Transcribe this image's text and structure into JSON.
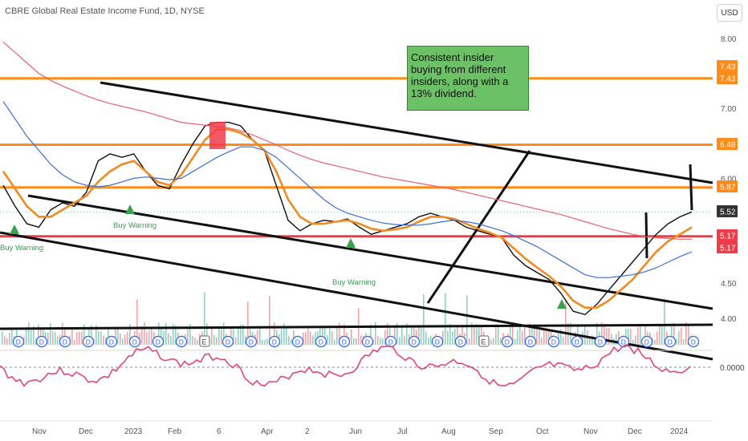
{
  "header": {
    "title": "CBRE Global Real Estate Income Fund, 1D, NYSE",
    "currency": "USD"
  },
  "note": {
    "text": "Consistent insider buying from different insiders, along with a 13% dividend."
  },
  "colors": {
    "orange": "#ff8c1a",
    "red": "#ee3d4a",
    "green": "#3aa14d",
    "black": "#111111",
    "ma_blue": "#3a6fd8",
    "ma_red": "#e8606d",
    "ma_orange": "#f08a24",
    "rsi": "#e0467d",
    "note_bg": "#6cc166"
  },
  "chart_data": {
    "type": "line",
    "xlabel": "",
    "ylabel": "",
    "x_ticks": [
      "Nov",
      "Dec",
      "2023",
      "Feb",
      "6",
      "Apr",
      "2",
      "Jun",
      "Jul",
      "Aug",
      "Sep",
      "Oct",
      "Nov",
      "Dec",
      "2024"
    ],
    "y_ticks": [
      "8.00",
      "7.00",
      "6.00",
      "4.50",
      "4.00"
    ],
    "ylim": [
      3.6,
      8.2
    ],
    "grid": false,
    "price_labels": [
      {
        "text": "7.43",
        "value": 7.43,
        "color": "#ff8c1a"
      },
      {
        "text": "6.48",
        "value": 6.48,
        "color": "#ff8c1a"
      },
      {
        "text": "5.87",
        "value": 5.87,
        "color": "#ff8c1a"
      },
      {
        "text": "5.52",
        "value": 5.52,
        "color": "#333333"
      },
      {
        "text": "5.17",
        "value": 5.17,
        "color": "#ee3d4a"
      }
    ],
    "horizontal_levels": [
      {
        "value": 7.43,
        "color": "#ff8c1a"
      },
      {
        "value": 6.48,
        "color": "#ff8c1a"
      },
      {
        "value": 5.87,
        "color": "#ff8c1a"
      },
      {
        "value": 5.17,
        "color": "#ee3d4a"
      }
    ],
    "annotations": [
      {
        "text": "Buy Warning"
      },
      {
        "text": "Buy Warning"
      },
      {
        "text": "Buy Warning"
      }
    ],
    "indicator_tick": "0.0000",
    "series": [
      {
        "values": [
          5.9,
          5.6,
          5.35,
          5.3,
          5.55,
          5.65,
          5.6,
          5.8,
          6.25,
          6.35,
          6.3,
          6.35,
          6.1,
          5.9,
          5.85,
          6.2,
          6.5,
          6.75,
          6.8,
          6.8,
          6.75,
          6.55,
          6.4,
          5.9,
          5.4,
          5.25,
          5.35,
          5.4,
          5.38,
          5.42,
          5.3,
          5.2,
          5.25,
          5.3,
          5.35,
          5.45,
          5.5,
          5.45,
          5.4,
          5.3,
          5.25,
          5.2,
          5.15,
          4.9,
          4.75,
          4.65,
          4.55,
          4.35,
          4.1,
          4.05,
          4.2,
          4.4,
          4.6,
          4.8,
          5.0,
          5.2,
          5.35,
          5.45,
          5.52
        ]
      },
      {
        "values": [
          6.1,
          5.85,
          5.6,
          5.45,
          5.45,
          5.55,
          5.65,
          5.75,
          5.95,
          6.1,
          6.2,
          6.25,
          6.1,
          5.95,
          5.9,
          6.05,
          6.3,
          6.55,
          6.7,
          6.7,
          6.65,
          6.55,
          6.4,
          6.1,
          5.7,
          5.45,
          5.35,
          5.35,
          5.38,
          5.4,
          5.35,
          5.28,
          5.25,
          5.27,
          5.3,
          5.38,
          5.45,
          5.45,
          5.42,
          5.35,
          5.28,
          5.22,
          5.15,
          5.0,
          4.85,
          4.72,
          4.6,
          4.45,
          4.25,
          4.15,
          4.15,
          4.25,
          4.4,
          4.55,
          4.75,
          4.95,
          5.1,
          5.2,
          5.3
        ]
      },
      {
        "values": [
          7.1,
          6.85,
          6.6,
          6.4,
          6.2,
          6.05,
          5.95,
          5.9,
          5.88,
          5.9,
          5.95,
          6.0,
          6.02,
          6.0,
          5.98,
          6.0,
          6.1,
          6.2,
          6.3,
          6.38,
          6.45,
          6.45,
          6.4,
          6.3,
          6.15,
          6.0,
          5.85,
          5.7,
          5.58,
          5.5,
          5.45,
          5.4,
          5.36,
          5.34,
          5.33,
          5.33,
          5.35,
          5.38,
          5.4,
          5.38,
          5.35,
          5.3,
          5.25,
          5.18,
          5.1,
          5.02,
          4.92,
          4.82,
          4.72,
          4.62,
          4.58,
          4.58,
          4.6,
          4.62,
          4.66,
          4.72,
          4.8,
          4.88,
          4.95
        ]
      },
      {
        "values": [
          7.95,
          7.8,
          7.65,
          7.5,
          7.4,
          7.32,
          7.25,
          7.18,
          7.12,
          7.07,
          7.03,
          6.99,
          6.95,
          6.9,
          6.85,
          6.8,
          6.78,
          6.76,
          6.74,
          6.72,
          6.68,
          6.62,
          6.55,
          6.48,
          6.4,
          6.33,
          6.27,
          6.22,
          6.18,
          6.14,
          6.1,
          6.06,
          6.02,
          5.99,
          5.96,
          5.93,
          5.9,
          5.87,
          5.84,
          5.8,
          5.76,
          5.72,
          5.68,
          5.64,
          5.6,
          5.56,
          5.52,
          5.48,
          5.43,
          5.38,
          5.33,
          5.28,
          5.24,
          5.2,
          5.17,
          5.15,
          5.14,
          5.13,
          5.13
        ]
      }
    ]
  }
}
